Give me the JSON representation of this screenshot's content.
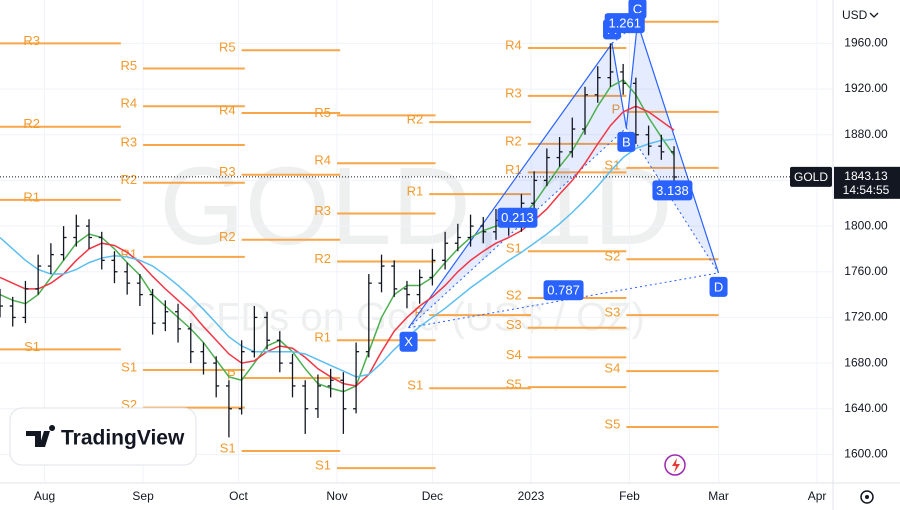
{
  "chart_data": {
    "type": "candlestick",
    "currency": "USD",
    "symbol": "GOLD",
    "watermark_title": "GOLD, 1D",
    "watermark_subtitle": "CFDs on Gold (US$ / OZ)",
    "last_price": 1843.13,
    "countdown": "14:54:55",
    "x": [
      -14,
      -10,
      -6,
      -2,
      2,
      6,
      10,
      14,
      18,
      22,
      26,
      30,
      34,
      38,
      42,
      46,
      50,
      54,
      58,
      62,
      66,
      70,
      74,
      78,
      82,
      86,
      90,
      94,
      98,
      102,
      106,
      110,
      114,
      118,
      122,
      126,
      130,
      134,
      138,
      142,
      146,
      150,
      154,
      158,
      162,
      166,
      170,
      174,
      178,
      182,
      186,
      190,
      194,
      198
    ],
    "open": [
      1735,
      1730,
      1720,
      1745,
      1765,
      1775,
      1790,
      1800,
      1790,
      1770,
      1760,
      1750,
      1740,
      1715,
      1725,
      1710,
      1690,
      1680,
      1660,
      1640,
      1690,
      1720,
      1700,
      1680,
      1660,
      1640,
      1660,
      1665,
      1640,
      1690,
      1750,
      1765,
      1745,
      1740,
      1755,
      1770,
      1785,
      1790,
      1800,
      1795,
      1805,
      1800,
      1820,
      1840,
      1860,
      1865,
      1885,
      1915,
      1930,
      1935,
      1925,
      1880,
      1870,
      1865
    ],
    "high": [
      1745,
      1738,
      1752,
      1775,
      1785,
      1800,
      1810,
      1806,
      1795,
      1778,
      1768,
      1758,
      1745,
      1735,
      1732,
      1715,
      1698,
      1686,
      1665,
      1700,
      1730,
      1725,
      1708,
      1688,
      1665,
      1670,
      1675,
      1672,
      1698,
      1758,
      1775,
      1770,
      1752,
      1762,
      1780,
      1795,
      1802,
      1810,
      1808,
      1815,
      1812,
      1828,
      1848,
      1868,
      1878,
      1895,
      1922,
      1940,
      1960,
      1942,
      1930,
      1888,
      1880,
      1870
    ],
    "low": [
      1720,
      1712,
      1715,
      1740,
      1758,
      1770,
      1782,
      1780,
      1762,
      1750,
      1740,
      1730,
      1705,
      1708,
      1698,
      1680,
      1670,
      1650,
      1615,
      1635,
      1685,
      1692,
      1672,
      1650,
      1618,
      1632,
      1650,
      1618,
      1636,
      1685,
      1742,
      1738,
      1728,
      1732,
      1748,
      1762,
      1778,
      1782,
      1785,
      1788,
      1792,
      1795,
      1815,
      1835,
      1852,
      1860,
      1880,
      1908,
      1922,
      1915,
      1872,
      1862,
      1858,
      1838
    ],
    "close": [
      1730,
      1720,
      1745,
      1765,
      1775,
      1790,
      1800,
      1790,
      1770,
      1760,
      1750,
      1740,
      1715,
      1725,
      1710,
      1690,
      1680,
      1660,
      1640,
      1690,
      1720,
      1700,
      1680,
      1660,
      1640,
      1660,
      1665,
      1640,
      1690,
      1750,
      1765,
      1745,
      1740,
      1755,
      1770,
      1785,
      1790,
      1800,
      1795,
      1805,
      1800,
      1820,
      1840,
      1860,
      1865,
      1885,
      1915,
      1930,
      1935,
      1925,
      1880,
      1870,
      1865,
      1843
    ],
    "color": "#131722",
    "moving_averages": [
      {
        "color": "#4caf50",
        "values": [
          1740,
          1735,
          1732,
          1740,
          1755,
          1770,
          1785,
          1793,
          1790,
          1780,
          1768,
          1757,
          1740,
          1730,
          1720,
          1710,
          1698,
          1683,
          1668,
          1665,
          1680,
          1695,
          1700,
          1690,
          1675,
          1662,
          1658,
          1655,
          1660,
          1690,
          1720,
          1740,
          1748,
          1748,
          1755,
          1768,
          1780,
          1790,
          1796,
          1800,
          1802,
          1808,
          1820,
          1836,
          1852,
          1866,
          1885,
          1905,
          1922,
          1928,
          1915,
          1895,
          1878,
          1862
        ]
      },
      {
        "color": "#f23645",
        "values": [
          1755,
          1750,
          1745,
          1745,
          1750,
          1758,
          1770,
          1780,
          1785,
          1783,
          1777,
          1768,
          1756,
          1745,
          1735,
          1725,
          1712,
          1700,
          1688,
          1680,
          1682,
          1690,
          1695,
          1693,
          1685,
          1675,
          1668,
          1662,
          1660,
          1670,
          1690,
          1708,
          1720,
          1730,
          1738,
          1748,
          1760,
          1770,
          1778,
          1785,
          1790,
          1796,
          1805,
          1815,
          1828,
          1840,
          1855,
          1872,
          1888,
          1900,
          1905,
          1900,
          1892,
          1884
        ]
      },
      {
        "color": "#5cbef0",
        "values": [
          1790,
          1780,
          1770,
          1762,
          1758,
          1758,
          1762,
          1768,
          1772,
          1774,
          1773,
          1770,
          1765,
          1757,
          1748,
          1738,
          1727,
          1715,
          1703,
          1695,
          1690,
          1690,
          1690,
          1690,
          1688,
          1683,
          1678,
          1673,
          1668,
          1670,
          1680,
          1692,
          1702,
          1712,
          1720,
          1728,
          1737,
          1746,
          1754,
          1762,
          1770,
          1777,
          1785,
          1793,
          1802,
          1812,
          1823,
          1835,
          1848,
          1860,
          1868,
          1872,
          1875,
          1876
        ]
      }
    ],
    "xlim": [
      -14,
      248
    ],
    "xticks": [
      {
        "value": 0,
        "label": "Aug"
      },
      {
        "value": 31,
        "label": "Sep"
      },
      {
        "value": 61,
        "label": "Oct"
      },
      {
        "value": 92,
        "label": "Nov"
      },
      {
        "value": 122,
        "label": "Dec"
      },
      {
        "value": 153,
        "label": "2023"
      },
      {
        "value": 184,
        "label": "Feb"
      },
      {
        "value": 212,
        "label": "Mar"
      },
      {
        "value": 243,
        "label": "Apr"
      }
    ],
    "ylim": [
      1575,
      1998
    ],
    "yticks": [
      {
        "value": 1600,
        "label": "1600.00"
      },
      {
        "value": 1640,
        "label": "1640.00"
      },
      {
        "value": 1680,
        "label": "1680.00"
      },
      {
        "value": 1720,
        "label": "1720.00"
      },
      {
        "value": 1760,
        "label": "1760.00"
      },
      {
        "value": 1800,
        "label": "1800.00"
      },
      {
        "value": 1840,
        "label": "1840.00"
      },
      {
        "value": 1880,
        "label": "1880.00"
      },
      {
        "value": 1920,
        "label": "1920.00"
      },
      {
        "value": 1960,
        "label": "1960.00"
      }
    ],
    "pivot_color": "#f7a64a",
    "pivots": [
      {
        "range": [
          -24,
          24
        ],
        "levels": [
          {
            "label": "R3",
            "value": 1960
          },
          {
            "label": "R2",
            "value": 1887
          },
          {
            "label": "R1",
            "value": 1823
          },
          {
            "label": "S1",
            "value": 1692
          }
        ]
      },
      {
        "range": [
          31,
          63
        ],
        "levels": [
          {
            "label": "R5",
            "value": 1938
          },
          {
            "label": "R4",
            "value": 1905
          },
          {
            "label": "R3",
            "value": 1871
          },
          {
            "label": "R2",
            "value": 1838
          },
          {
            "label": "R1",
            "value": 1773
          },
          {
            "label": "S1",
            "value": 1674
          },
          {
            "label": "S2",
            "value": 1641
          }
        ]
      },
      {
        "range": [
          62,
          93
        ],
        "levels": [
          {
            "label": "R5",
            "value": 1954
          },
          {
            "label": "R4",
            "value": 1899
          },
          {
            "label": "R3",
            "value": 1845
          },
          {
            "label": "R2",
            "value": 1788
          },
          {
            "label": "P",
            "value": 1667
          },
          {
            "label": "S1",
            "value": 1603
          }
        ]
      },
      {
        "range": [
          92,
          123
        ],
        "levels": [
          {
            "label": "R5",
            "value": 1897
          },
          {
            "label": "R4",
            "value": 1855
          },
          {
            "label": "R3",
            "value": 1811
          },
          {
            "label": "R2",
            "value": 1769
          },
          {
            "label": "R1",
            "value": 1700
          },
          {
            "label": "S1",
            "value": 1588
          }
        ]
      },
      {
        "range": [
          121,
          153
        ],
        "levels": [
          {
            "label": "R2",
            "value": 1891
          },
          {
            "label": "R1",
            "value": 1828
          },
          {
            "label": "P",
            "value": 1722
          },
          {
            "label": "S1",
            "value": 1658
          }
        ]
      },
      {
        "range": [
          152,
          183
        ],
        "levels": [
          {
            "label": "R4",
            "value": 1956
          },
          {
            "label": "R3",
            "value": 1914
          },
          {
            "label": "R2",
            "value": 1872
          },
          {
            "label": "R1",
            "value": 1847
          },
          {
            "label": "S1",
            "value": 1778
          },
          {
            "label": "S2",
            "value": 1737
          },
          {
            "label": "S3",
            "value": 1711
          },
          {
            "label": "S4",
            "value": 1685
          },
          {
            "label": "S5",
            "value": 1659
          }
        ]
      },
      {
        "range": [
          183,
          212
        ],
        "levels": [
          {
            "label": "R1",
            "value": 1979
          },
          {
            "label": "P",
            "value": 1900
          },
          {
            "label": "S1",
            "value": 1851
          },
          {
            "label": "S2",
            "value": 1771
          },
          {
            "label": "S3",
            "value": 1722
          },
          {
            "label": "S4",
            "value": 1673
          },
          {
            "label": "S5",
            "value": 1624
          }
        ]
      }
    ],
    "pattern": {
      "color": "#2962ff",
      "points": [
        {
          "label": "X",
          "x": 114.5,
          "y": 1711
        },
        {
          "label": "A",
          "x": 178.5,
          "y": 1960
        },
        {
          "label": "B",
          "x": 183,
          "y": 1886
        },
        {
          "label": "C",
          "x": 186.5,
          "y": 1978
        },
        {
          "label": "D",
          "x": 212,
          "y": 1759
        }
      ],
      "ratios": [
        0.213,
        1.261,
        3.138,
        0.787
      ]
    }
  },
  "branding": "TradingView"
}
